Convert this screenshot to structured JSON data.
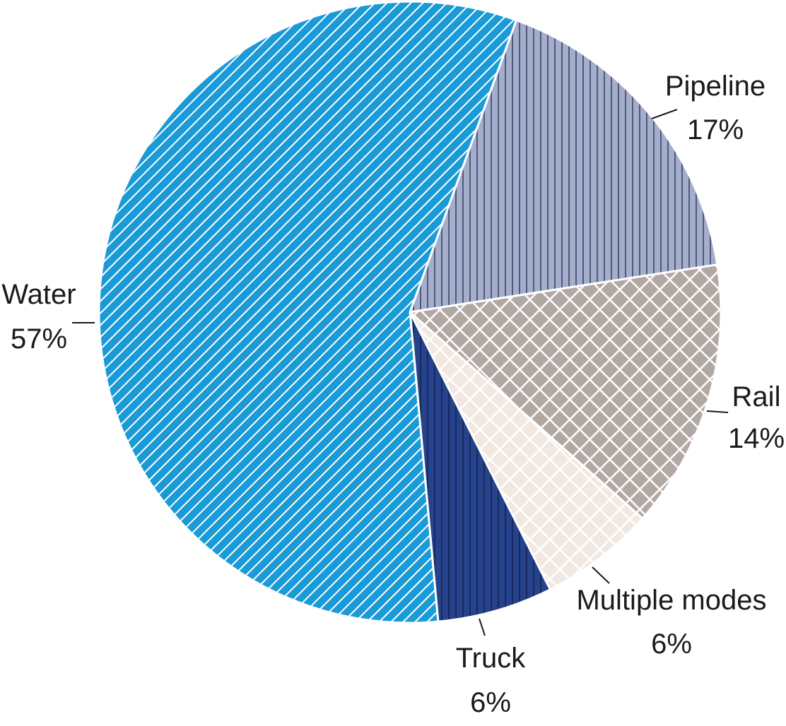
{
  "chart_data": {
    "type": "pie",
    "slices": [
      {
        "label": "Pipeline",
        "value": 17,
        "value_label": "17%",
        "color": "#a4aecb",
        "pattern": "vertical"
      },
      {
        "label": "Rail",
        "value": 14,
        "value_label": "14%",
        "color": "#b2a8a3",
        "pattern": "crosshatch"
      },
      {
        "label": "Multiple modes",
        "value": 6,
        "value_label": "6%",
        "color": "#f1e8e1",
        "pattern": "crosshatch"
      },
      {
        "label": "Truck",
        "value": 6,
        "value_label": "6%",
        "color": "#26428b",
        "pattern": "vertical"
      },
      {
        "label": "Water",
        "value": 57,
        "value_label": "57%",
        "color": "#1a9ad6",
        "pattern": "diagonal"
      }
    ]
  }
}
